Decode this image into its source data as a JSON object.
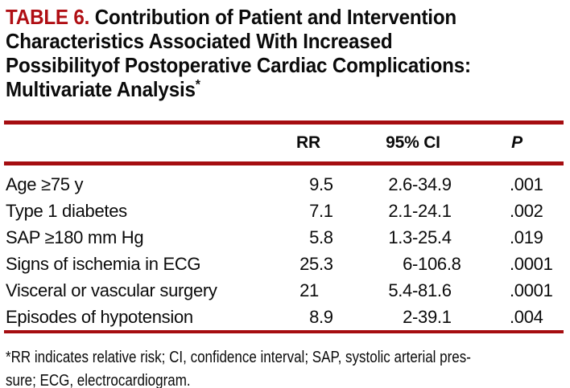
{
  "title": {
    "tag": "TABLE 6.",
    "line1": "Contribution of Patient and Intervention",
    "line2": "Characteristics Associated With Increased",
    "line3": "Possibilityof Postoperative Cardiac Complications:",
    "line4": "Multivariate Analysis",
    "marker": "*"
  },
  "table": {
    "header": {
      "rr": "RR",
      "ci": "95% CI",
      "p": "P"
    },
    "rows": [
      {
        "label": "Age ≥75 y",
        "rr": "9.5",
        "ci": "2.6-34.9",
        "p": ".001"
      },
      {
        "label": "Type 1 diabetes",
        "rr": "7.1",
        "ci": "2.1-24.1",
        "p": ".002"
      },
      {
        "label": "SAP ≥180 mm Hg",
        "rr": "5.8",
        "ci": "1.3-25.4",
        "p": ".019"
      },
      {
        "label": "Signs of ischemia in ECG",
        "rr": "25.3",
        "ci": "6-106.8",
        "p": ".0001"
      },
      {
        "label": "Visceral or vascular surgery",
        "rr": "21",
        "ci": "5.4-81.6",
        "p": ".0001"
      },
      {
        "label": "Episodes of hypotension",
        "rr": "8.9",
        "ci": "2-39.1",
        "p": ".004"
      }
    ]
  },
  "footnote": {
    "lines": [
      "*RR indicates relative risk; CI, confidence interval; SAP, systolic arterial pres-",
      "sure; ECG, electrocardiogram."
    ]
  },
  "colors": {
    "accent_red": "#b00f14",
    "rule_red": "#a50d10",
    "text": "#0b0b0b"
  }
}
